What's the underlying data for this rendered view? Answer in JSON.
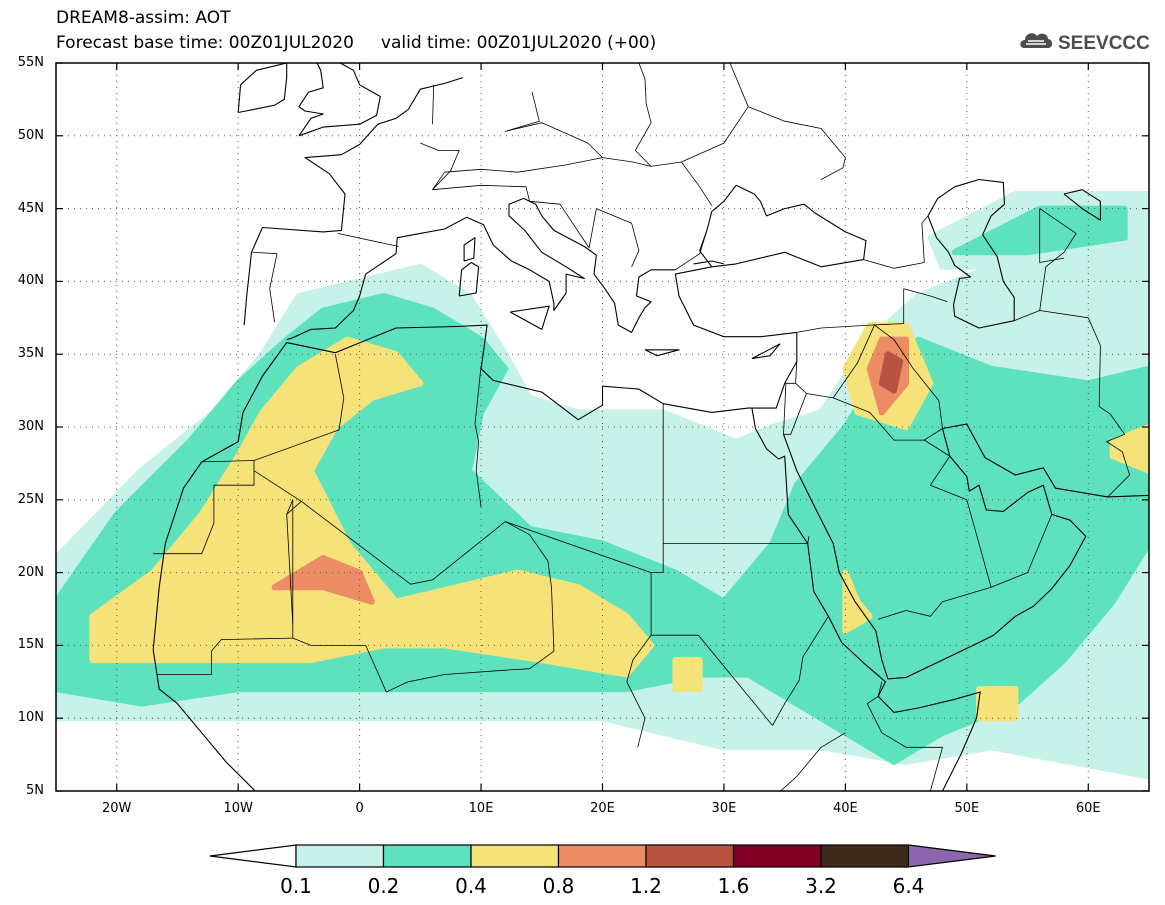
{
  "header": {
    "line1": "DREAM8-assim: AOT",
    "line2": "Forecast base time: 00Z01JUL2020     valid time: 00Z01JUL2020 (+00)",
    "logo_text": "SEEVCCC"
  },
  "map": {
    "projection": "lat-lon",
    "lat_range": [
      5,
      55
    ],
    "lon_range": [
      -25,
      65
    ],
    "lat_ticks": [
      {
        "value": 55,
        "label": "55N"
      },
      {
        "value": 50,
        "label": "50N"
      },
      {
        "value": 45,
        "label": "45N"
      },
      {
        "value": 40,
        "label": "40N"
      },
      {
        "value": 35,
        "label": "35N"
      },
      {
        "value": 30,
        "label": "30N"
      },
      {
        "value": 25,
        "label": "25N"
      },
      {
        "value": 20,
        "label": "20N"
      },
      {
        "value": 15,
        "label": "15N"
      },
      {
        "value": 10,
        "label": "10N"
      },
      {
        "value": 5,
        "label": "5N"
      }
    ],
    "lon_ticks": [
      {
        "value": -20,
        "label": "20W"
      },
      {
        "value": -10,
        "label": "10W"
      },
      {
        "value": 0,
        "label": "0"
      },
      {
        "value": 10,
        "label": "10E"
      },
      {
        "value": 20,
        "label": "20E"
      },
      {
        "value": 30,
        "label": "30E"
      },
      {
        "value": 40,
        "label": "40E"
      },
      {
        "value": 50,
        "label": "50E"
      },
      {
        "value": 60,
        "label": "60E"
      }
    ],
    "grid": "dotted"
  },
  "colorbar": {
    "levels": [
      "0.1",
      "0.2",
      "0.4",
      "0.8",
      "1.2",
      "1.6",
      "3.2",
      "6.4"
    ],
    "colors": [
      "#c6f2ea",
      "#5ee2bd",
      "#f5e37a",
      "#eb8c64",
      "#b75340",
      "#800025",
      "#3d2a1a"
    ],
    "over_color": "#8c66ad",
    "under_color": "#ffffff"
  },
  "fields": [
    {
      "level": 0,
      "polygons": [
        [
          [
            -25,
            21
          ],
          [
            -18,
            27
          ],
          [
            -12,
            31
          ],
          [
            -8,
            35
          ],
          [
            -5,
            39
          ],
          [
            0,
            40
          ],
          [
            5,
            41
          ],
          [
            9,
            39
          ],
          [
            12,
            35
          ],
          [
            14,
            32
          ],
          [
            18,
            31
          ],
          [
            25,
            31
          ],
          [
            31,
            29
          ],
          [
            34,
            30
          ],
          [
            38,
            31
          ],
          [
            42,
            36
          ],
          [
            46,
            39
          ],
          [
            52,
            41
          ],
          [
            58,
            44
          ],
          [
            65,
            45
          ],
          [
            65,
            6
          ],
          [
            52,
            8
          ],
          [
            45,
            7
          ],
          [
            38,
            8
          ],
          [
            30,
            8
          ],
          [
            20,
            10
          ],
          [
            10,
            10
          ],
          [
            0,
            10
          ],
          [
            -10,
            10
          ],
          [
            -18,
            10
          ],
          [
            -25,
            10
          ]
        ],
        [
          [
            47,
            43
          ],
          [
            54,
            46
          ],
          [
            65,
            46
          ],
          [
            65,
            42
          ],
          [
            55,
            41
          ],
          [
            48,
            41
          ]
        ]
      ]
    },
    {
      "level": 1,
      "polygons": [
        [
          [
            -25,
            12
          ],
          [
            -25,
            18
          ],
          [
            -20,
            24
          ],
          [
            -14,
            29
          ],
          [
            -10,
            33
          ],
          [
            -6,
            36
          ],
          [
            -3,
            38
          ],
          [
            2,
            39
          ],
          [
            6,
            38
          ],
          [
            10,
            36
          ],
          [
            12,
            34
          ],
          [
            10,
            31
          ],
          [
            9,
            27
          ],
          [
            14,
            23
          ],
          [
            20,
            22
          ],
          [
            26,
            20
          ],
          [
            30,
            18
          ],
          [
            34,
            22
          ],
          [
            36,
            26
          ],
          [
            40,
            30
          ],
          [
            43,
            34
          ],
          [
            46,
            36
          ],
          [
            52,
            34
          ],
          [
            60,
            33
          ],
          [
            65,
            34
          ],
          [
            65,
            22
          ],
          [
            62,
            18
          ],
          [
            58,
            14
          ],
          [
            54,
            11
          ],
          [
            48,
            9
          ],
          [
            44,
            7
          ],
          [
            40,
            9
          ],
          [
            36,
            11
          ],
          [
            32,
            13
          ],
          [
            28,
            13
          ],
          [
            22,
            12
          ],
          [
            15,
            12
          ],
          [
            8,
            12
          ],
          [
            0,
            12
          ],
          [
            -10,
            12
          ],
          [
            -18,
            11
          ]
        ],
        [
          [
            49,
            42
          ],
          [
            56,
            45
          ],
          [
            63,
            45
          ],
          [
            63,
            43
          ],
          [
            55,
            42
          ]
        ]
      ]
    },
    {
      "level": 2,
      "polygons": [
        [
          [
            -22,
            14
          ],
          [
            -22,
            17
          ],
          [
            -17,
            20
          ],
          [
            -13,
            24
          ],
          [
            -10,
            28
          ],
          [
            -8,
            31
          ],
          [
            -5,
            34
          ],
          [
            -1,
            36
          ],
          [
            3,
            35
          ],
          [
            5,
            33
          ],
          [
            1,
            32
          ],
          [
            -2,
            30
          ],
          [
            -4,
            27
          ],
          [
            -1,
            22
          ],
          [
            3,
            18
          ],
          [
            8,
            19
          ],
          [
            13,
            20
          ],
          [
            18,
            19
          ],
          [
            22,
            17
          ],
          [
            24,
            15
          ],
          [
            22,
            13
          ],
          [
            15,
            14
          ],
          [
            7,
            15
          ],
          [
            2,
            15
          ],
          [
            -4,
            14
          ],
          [
            -10,
            14
          ],
          [
            -16,
            14
          ]
        ],
        [
          [
            40,
            34
          ],
          [
            42,
            37
          ],
          [
            45,
            37
          ],
          [
            47,
            33
          ],
          [
            45,
            30
          ],
          [
            41,
            31
          ]
        ],
        [
          [
            40,
            20
          ],
          [
            41,
            18
          ],
          [
            42,
            17
          ],
          [
            40,
            16
          ]
        ],
        [
          [
            51,
            12
          ],
          [
            54,
            12
          ],
          [
            54,
            10
          ],
          [
            51,
            10
          ]
        ],
        [
          [
            62,
            29
          ],
          [
            65,
            30
          ],
          [
            65,
            27
          ],
          [
            62,
            28
          ]
        ],
        [
          [
            26,
            14
          ],
          [
            28,
            14
          ],
          [
            28,
            12
          ],
          [
            26,
            12
          ]
        ]
      ]
    },
    {
      "level": 3,
      "polygons": [
        [
          [
            -7,
            19
          ],
          [
            -3,
            21
          ],
          [
            0,
            20
          ],
          [
            1,
            18
          ],
          [
            -3,
            19
          ]
        ],
        [
          [
            42,
            34
          ],
          [
            43,
            36
          ],
          [
            45,
            36
          ],
          [
            45,
            33
          ],
          [
            43,
            31
          ]
        ]
      ]
    },
    {
      "level": 4,
      "polygons": [
        [
          [
            43,
            33
          ],
          [
            43.5,
            35
          ],
          [
            44.5,
            34.5
          ],
          [
            44,
            32.5
          ]
        ]
      ]
    }
  ]
}
